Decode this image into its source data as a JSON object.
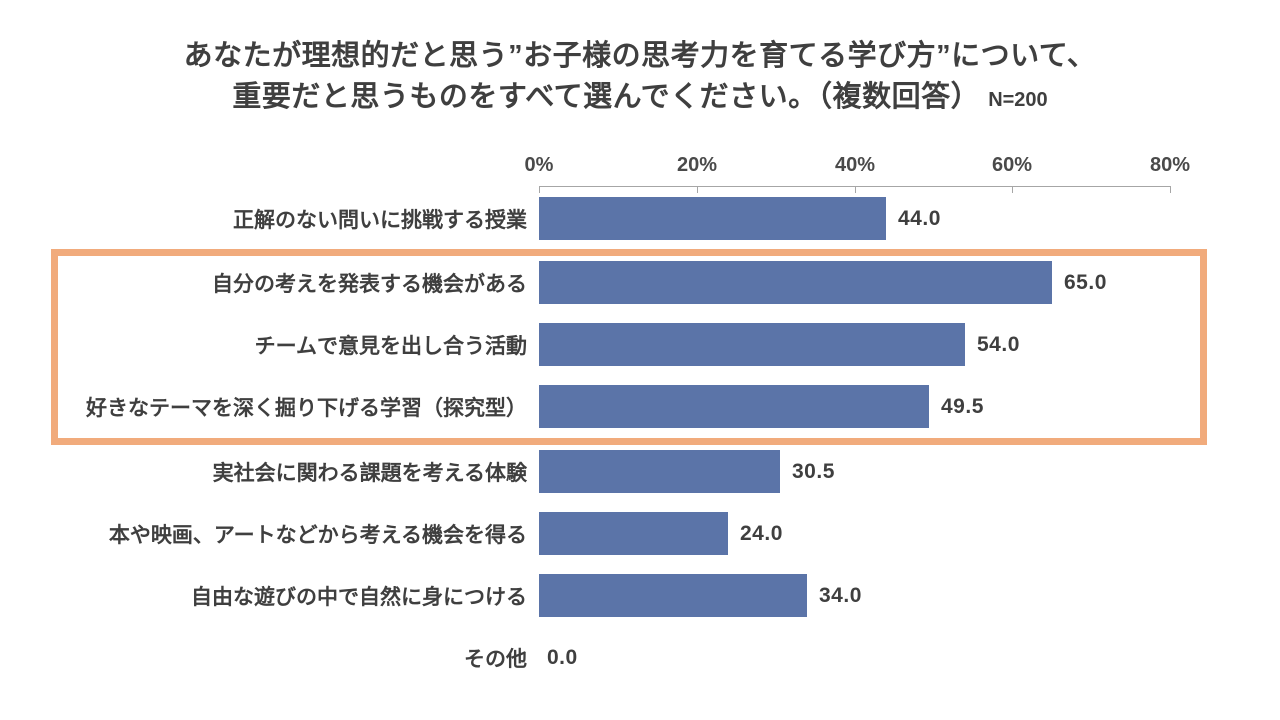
{
  "page": {
    "background": "#FFFFFF"
  },
  "chart_data": {
    "type": "bar",
    "orientation": "horizontal",
    "title_line1": "あなたが理想的だと思う”お子様の思考力を育てる学び方”について、",
    "title_line2": "重要だと思うものをすべて選んでください。（複数回答）",
    "sample_label": "N=200",
    "categories": [
      "正解のない問いに挑戦する授業",
      "自分の考えを発表する機会がある",
      "チームで意見を出し合う活動",
      "好きなテーマを深く掘り下げる学習（探究型）",
      "実社会に関わる課題を考える体験",
      "本や映画、アートなどから考える機会を得る",
      "自由な遊びの中で自然に身につける",
      "その他"
    ],
    "values": [
      44.0,
      65.0,
      54.0,
      49.5,
      30.5,
      24.0,
      34.0,
      0.0
    ],
    "value_labels": [
      "44.0",
      "65.0",
      "54.0",
      "49.5",
      "30.5",
      "24.0",
      "34.0",
      "0.0"
    ],
    "x_ticks": [
      {
        "label": "0%",
        "value": 0
      },
      {
        "label": "20%",
        "value": 20
      },
      {
        "label": "40%",
        "value": 40
      },
      {
        "label": "60%",
        "value": 60
      },
      {
        "label": "80%",
        "value": 80
      }
    ],
    "xlim": [
      0,
      80
    ],
    "grid": "off",
    "legend": "none",
    "bar_color": "#5B74A8",
    "text_color": "#3F3F3F",
    "axis_text_color": "#4A4A4A",
    "axis_line_color": "#A6A6A6",
    "highlight_box": {
      "rows": [
        1,
        2,
        3
      ],
      "border_color": "#F1AB7C"
    }
  }
}
